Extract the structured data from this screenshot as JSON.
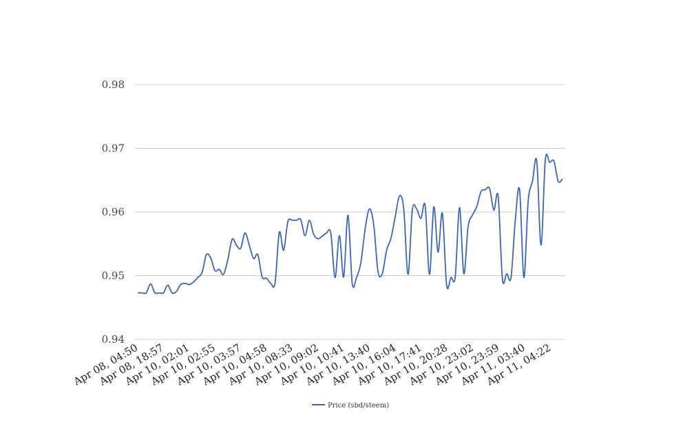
{
  "chart_data": {
    "type": "line",
    "title": "",
    "xlabel": "",
    "ylabel": "",
    "ylim": [
      0.94,
      0.98
    ],
    "yticks": [
      "0.94",
      "0.95",
      "0.96",
      "0.97",
      "0.98"
    ],
    "grid": true,
    "legend_position": "bottom-center",
    "xtick_labels": [
      "Apr 08, 04:50",
      "Apr 08, 18:57",
      "Apr 10, 02:01",
      "Apr 10, 02:55",
      "Apr 10, 03:57",
      "Apr 10, 04:58",
      "Apr 10, 08:33",
      "Apr 10, 09:02",
      "Apr 10, 10:41",
      "Apr 10, 13:40",
      "Apr 10, 16:04",
      "Apr 10, 17:41",
      "Apr 10, 20:28",
      "Apr 10, 23:02",
      "Apr 10, 23:59",
      "Apr 11, 03:40",
      "Apr 11, 04:22"
    ],
    "series": [
      {
        "name": "Price (sbd/steem)",
        "color": "#3b64b4",
        "values": [
          0.9473,
          0.9473,
          0.9473,
          0.9487,
          0.9473,
          0.9473,
          0.9473,
          0.9485,
          0.9473,
          0.9475,
          0.9486,
          0.9488,
          0.9486,
          0.949,
          0.9497,
          0.9505,
          0.9533,
          0.9528,
          0.9508,
          0.951,
          0.9502,
          0.9525,
          0.9557,
          0.9548,
          0.9543,
          0.9567,
          0.9548,
          0.9527,
          0.9533,
          0.9498,
          0.9496,
          0.9488,
          0.9488,
          0.9568,
          0.954,
          0.9585,
          0.9587,
          0.9587,
          0.9588,
          0.9563,
          0.9587,
          0.9565,
          0.9558,
          0.9562,
          0.9567,
          0.9567,
          0.9497,
          0.9563,
          0.9498,
          0.9595,
          0.9488,
          0.9497,
          0.952,
          0.9573,
          0.9605,
          0.958,
          0.9507,
          0.9503,
          0.954,
          0.9558,
          0.9592,
          0.9625,
          0.9605,
          0.9502,
          0.9603,
          0.9605,
          0.959,
          0.961,
          0.9502,
          0.9608,
          0.9537,
          0.9598,
          0.9485,
          0.9497,
          0.9498,
          0.9607,
          0.9503,
          0.9577,
          0.9595,
          0.9608,
          0.9632,
          0.9635,
          0.9637,
          0.9603,
          0.9625,
          0.9495,
          0.9503,
          0.9497,
          0.9587,
          0.9635,
          0.9497,
          0.9617,
          0.9648,
          0.968,
          0.9548,
          0.9682,
          0.9678,
          0.968,
          0.9648,
          0.9652
        ]
      }
    ]
  }
}
